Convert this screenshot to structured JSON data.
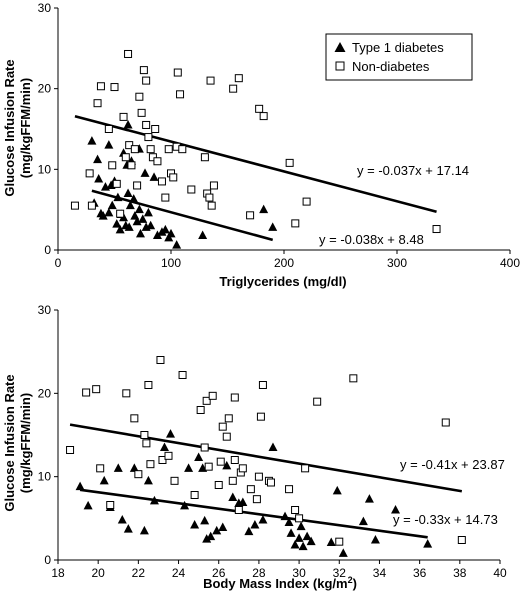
{
  "chart_data": [
    {
      "type": "scatter",
      "xlabel": "Triglycerides (mg/dl)",
      "ylabel_line1": "Glucose Infusion Rate",
      "ylabel_line2": "(mg/kgFFM/min)",
      "xlim": [
        0,
        400
      ],
      "ylim": [
        0,
        30
      ],
      "xticks": [
        "0",
        "100",
        "200",
        "300",
        "400"
      ],
      "yticks": [
        "0",
        "10",
        "20",
        "30"
      ],
      "legend": {
        "position": "top-right",
        "entries": [
          {
            "label": "Type 1 diabetes",
            "marker": "triangle"
          },
          {
            "label": "Non-diabetes",
            "marker": "square-open"
          }
        ]
      },
      "series": [
        {
          "name": "Type 1 diabetes",
          "marker": "triangle",
          "points": [
            [
              30,
              13.5
            ],
            [
              32,
              5.8
            ],
            [
              35,
              11.2
            ],
            [
              38,
              4.5
            ],
            [
              40,
              4.2
            ],
            [
              42,
              7.8
            ],
            [
              45,
              4.6
            ],
            [
              47,
              8.0
            ],
            [
              48,
              5.5
            ],
            [
              50,
              8.5
            ],
            [
              52,
              3.2
            ],
            [
              53,
              6.5
            ],
            [
              55,
              2.5
            ],
            [
              56,
              4.4
            ],
            [
              58,
              4.0
            ],
            [
              60,
              3.0
            ],
            [
              61,
              10.5
            ],
            [
              62,
              7.0
            ],
            [
              63,
              2.8
            ],
            [
              64,
              5.5
            ],
            [
              65,
              11.0
            ],
            [
              67,
              6.3
            ],
            [
              68,
              4.2
            ],
            [
              70,
              3.5
            ],
            [
              72,
              12.5
            ],
            [
              72,
              5.0
            ],
            [
              73,
              2.0
            ],
            [
              75,
              3.8
            ],
            [
              77,
              9.5
            ],
            [
              78,
              2.8
            ],
            [
              80,
              4.6
            ],
            [
              82,
              3.0
            ],
            [
              85,
              9.0
            ],
            [
              88,
              1.8
            ],
            [
              92,
              2.2
            ],
            [
              95,
              2.5
            ],
            [
              98,
              1.5
            ],
            [
              100,
              2.0
            ],
            [
              105,
              0.6
            ],
            [
              45,
              13.0
            ],
            [
              58,
              12.0
            ],
            [
              62,
              15.5
            ],
            [
              36,
              8.8
            ],
            [
              128,
              1.8
            ],
            [
              182,
              5.0
            ],
            [
              190,
              2.8
            ]
          ]
        },
        {
          "name": "Non-diabetes",
          "marker": "square-open",
          "points": [
            [
              15,
              5.5
            ],
            [
              28,
              9.5
            ],
            [
              30,
              5.5
            ],
            [
              35,
              18.2
            ],
            [
              38,
              20.3
            ],
            [
              45,
              15.0
            ],
            [
              48,
              10.5
            ],
            [
              50,
              20.2
            ],
            [
              52,
              8.2
            ],
            [
              55,
              4.5
            ],
            [
              58,
              16.5
            ],
            [
              60,
              11.5
            ],
            [
              62,
              24.3
            ],
            [
              63,
              13.0
            ],
            [
              65,
              10.5
            ],
            [
              68,
              12.5
            ],
            [
              70,
              8.0
            ],
            [
              72,
              19.0
            ],
            [
              74,
              17.0
            ],
            [
              76,
              22.3
            ],
            [
              78,
              21.0
            ],
            [
              78,
              15.5
            ],
            [
              80,
              14.0
            ],
            [
              82,
              12.5
            ],
            [
              84,
              11.5
            ],
            [
              86,
              15.0
            ],
            [
              88,
              11.0
            ],
            [
              92,
              8.5
            ],
            [
              95,
              6.5
            ],
            [
              98,
              12.5
            ],
            [
              100,
              9.5
            ],
            [
              102,
              9.0
            ],
            [
              105,
              12.8
            ],
            [
              106,
              22.0
            ],
            [
              108,
              19.3
            ],
            [
              110,
              12.5
            ],
            [
              118,
              7.5
            ],
            [
              130,
              11.5
            ],
            [
              132,
              7.0
            ],
            [
              134,
              6.5
            ],
            [
              136,
              5.5
            ],
            [
              138,
              8.0
            ],
            [
              135,
              21.0
            ],
            [
              155,
              20.0
            ],
            [
              160,
              21.3
            ],
            [
              170,
              4.3
            ],
            [
              178,
              17.5
            ],
            [
              182,
              16.6
            ],
            [
              205,
              10.8
            ],
            [
              210,
              3.3
            ],
            [
              220,
              6.0
            ],
            [
              335,
              2.6
            ]
          ]
        }
      ],
      "fits": [
        {
          "series": "Non-diabetes",
          "slope": -0.037,
          "intercept": 17.14,
          "x_range": [
            15,
            335
          ],
          "label": "y = -0.037x + 17.14"
        },
        {
          "series": "Type 1 diabetes",
          "slope": -0.038,
          "intercept": 8.48,
          "x_range": [
            30,
            190
          ],
          "label": "y = -0.038x + 8.48"
        }
      ]
    },
    {
      "type": "scatter",
      "xlabel": "Body Mass Index (kg/m",
      "xlabel_sup": "2",
      "xlabel_end": ")",
      "ylabel_line1": "Glucose Infusion Rate",
      "ylabel_line2": "(mg/kgFFM/min)",
      "xlim": [
        18,
        40
      ],
      "ylim": [
        0,
        30
      ],
      "xticks": [
        "18",
        "20",
        "22",
        "24",
        "26",
        "28",
        "30",
        "32",
        "34",
        "36",
        "38",
        "40"
      ],
      "yticks": [
        "0",
        "10",
        "20",
        "30"
      ],
      "series": [
        {
          "name": "Type 1 diabetes",
          "marker": "triangle",
          "points": [
            [
              19.1,
              8.8
            ],
            [
              19.5,
              6.5
            ],
            [
              20.3,
              9.5
            ],
            [
              20.6,
              6.3
            ],
            [
              21.0,
              11.0
            ],
            [
              21.2,
              4.8
            ],
            [
              21.5,
              3.7
            ],
            [
              21.8,
              11.0
            ],
            [
              22.3,
              3.5
            ],
            [
              22.5,
              9.5
            ],
            [
              22.8,
              7.1
            ],
            [
              23.3,
              13.5
            ],
            [
              23.6,
              15.1
            ],
            [
              24.3,
              6.5
            ],
            [
              24.5,
              11.0
            ],
            [
              24.8,
              4.2
            ],
            [
              25.0,
              12.3
            ],
            [
              25.2,
              11.0
            ],
            [
              25.3,
              4.7
            ],
            [
              25.4,
              2.5
            ],
            [
              25.6,
              2.8
            ],
            [
              25.9,
              3.5
            ],
            [
              26.2,
              3.9
            ],
            [
              26.4,
              11.3
            ],
            [
              26.7,
              7.5
            ],
            [
              27.0,
              6.8
            ],
            [
              27.2,
              6.9
            ],
            [
              27.5,
              3.4
            ],
            [
              27.8,
              4.2
            ],
            [
              28.2,
              4.8
            ],
            [
              28.7,
              13.5
            ],
            [
              29.3,
              5.2
            ],
            [
              29.5,
              4.5
            ],
            [
              29.6,
              3.2
            ],
            [
              29.8,
              1.8
            ],
            [
              30.0,
              2.6
            ],
            [
              30.1,
              4.0
            ],
            [
              30.2,
              1.6
            ],
            [
              30.4,
              2.8
            ],
            [
              30.6,
              2.2
            ],
            [
              31.6,
              2.1
            ],
            [
              31.9,
              8.3
            ],
            [
              32.2,
              0.8
            ],
            [
              33.2,
              4.6
            ],
            [
              33.5,
              7.3
            ],
            [
              33.8,
              2.4
            ],
            [
              34.8,
              6.0
            ],
            [
              36.4,
              1.9
            ]
          ]
        },
        {
          "name": "Non-diabetes",
          "marker": "square-open",
          "points": [
            [
              18.6,
              13.2
            ],
            [
              19.4,
              20.1
            ],
            [
              19.9,
              20.5
            ],
            [
              20.1,
              11.0
            ],
            [
              20.6,
              6.6
            ],
            [
              21.4,
              20.0
            ],
            [
              21.8,
              17.0
            ],
            [
              22.0,
              10.3
            ],
            [
              22.3,
              15.0
            ],
            [
              22.4,
              14.0
            ],
            [
              22.5,
              21.0
            ],
            [
              22.6,
              11.5
            ],
            [
              23.1,
              24.0
            ],
            [
              23.2,
              12.0
            ],
            [
              23.5,
              12.5
            ],
            [
              23.8,
              9.5
            ],
            [
              24.2,
              22.2
            ],
            [
              24.8,
              7.8
            ],
            [
              25.1,
              18.0
            ],
            [
              25.3,
              13.5
            ],
            [
              25.4,
              19.1
            ],
            [
              25.5,
              11.2
            ],
            [
              25.7,
              19.7
            ],
            [
              26.0,
              9.0
            ],
            [
              26.1,
              11.8
            ],
            [
              26.2,
              16.0
            ],
            [
              26.4,
              14.8
            ],
            [
              26.5,
              17.0
            ],
            [
              26.7,
              9.5
            ],
            [
              26.8,
              19.5
            ],
            [
              26.8,
              12.0
            ],
            [
              27.0,
              6.0
            ],
            [
              27.1,
              10.5
            ],
            [
              27.2,
              11.0
            ],
            [
              27.6,
              8.5
            ],
            [
              27.9,
              7.3
            ],
            [
              28.0,
              10.0
            ],
            [
              28.1,
              17.2
            ],
            [
              28.2,
              21.0
            ],
            [
              28.5,
              9.5
            ],
            [
              28.6,
              9.3
            ],
            [
              29.5,
              8.5
            ],
            [
              29.8,
              6.0
            ],
            [
              30.0,
              5.0
            ],
            [
              30.3,
              11.0
            ],
            [
              30.9,
              19.0
            ],
            [
              32.0,
              2.2
            ],
            [
              32.7,
              21.8
            ],
            [
              37.3,
              16.5
            ],
            [
              38.1,
              2.4
            ]
          ]
        }
      ],
      "fits": [
        {
          "series": "Non-diabetes",
          "slope": -0.41,
          "intercept": 23.87,
          "x_range": [
            18.6,
            38.1
          ],
          "label": "y = -0.41x + 23.87"
        },
        {
          "series": "Type 1 diabetes",
          "slope": -0.33,
          "intercept": 14.73,
          "x_range": [
            19.1,
            36.4
          ],
          "label": "y = -0.33x + 14.73"
        }
      ]
    }
  ]
}
